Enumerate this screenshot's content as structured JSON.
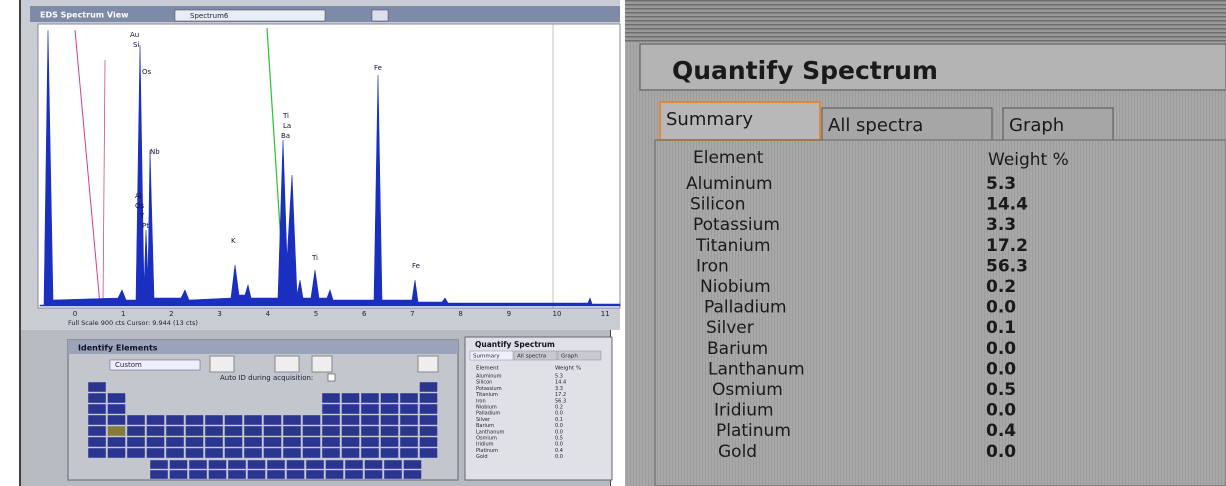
{
  "spectrum_view": {
    "title": "EDS Spectrum View",
    "selector": "Spectrum6",
    "x_axis_labels": [
      "0",
      "1",
      "2",
      "3",
      "4",
      "5",
      "6",
      "7",
      "8",
      "9",
      "10",
      "11"
    ],
    "peak_labels": [
      "Au",
      "Si",
      "Os",
      "Nb",
      "Al",
      "Os",
      "Y",
      "Pt",
      "Ti",
      "La",
      "Ba",
      "Fe",
      "K",
      "Ti",
      "Fe"
    ],
    "status": "Full Scale 900 cts Cursor: 9.944 (13 cts)"
  },
  "identify_elements": {
    "title": "Identify Elements",
    "selector": "Custom",
    "checkbox_label": "Auto ID during acquisition:"
  },
  "quantify_spectrum": {
    "title": "Quantify Spectrum",
    "tabs": [
      "Summary",
      "All spectra",
      "Graph"
    ],
    "header": [
      "Element",
      "Weight %"
    ],
    "rows": [
      [
        "Aluminum",
        "5.3"
      ],
      [
        "Silicon",
        "14.4"
      ],
      [
        "Potassium",
        "3.3"
      ],
      [
        "Titanium",
        "17.2"
      ],
      [
        "Iron",
        "56.3"
      ],
      [
        "Niobium",
        "0.2"
      ],
      [
        "Palladium",
        "0.0"
      ],
      [
        "Silver",
        "0.1"
      ],
      [
        "Barium",
        "0.0"
      ],
      [
        "Lanthanum",
        "0.0"
      ],
      [
        "Osmium",
        "0.5"
      ],
      [
        "Iridium",
        "0.0"
      ],
      [
        "Platinum",
        "0.4"
      ],
      [
        "Gold",
        "0.0"
      ]
    ]
  }
}
